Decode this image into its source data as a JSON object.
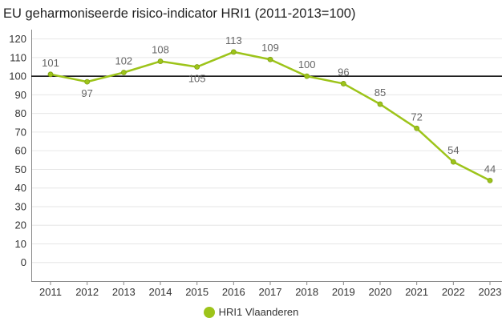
{
  "chart_data": {
    "type": "line",
    "title": "EU geharmoniseerde risico-indicator HRI1 (2011-2013=100)",
    "xlabel": "",
    "ylabel": "",
    "categories": [
      "2011",
      "2012",
      "2013",
      "2014",
      "2015",
      "2016",
      "2017",
      "2018",
      "2019",
      "2020",
      "2021",
      "2022",
      "2023"
    ],
    "series": [
      {
        "name": "HRI1 Vlaanderen",
        "values": [
          101,
          97,
          102,
          108,
          105,
          113,
          109,
          100,
          96,
          85,
          72,
          54,
          44
        ]
      }
    ],
    "reference_line": 100,
    "ylim": [
      -10,
      125
    ],
    "yticks": [
      0,
      10,
      20,
      30,
      40,
      50,
      60,
      70,
      80,
      90,
      100,
      110,
      120
    ],
    "grid": true,
    "legend_position": "bottom-center"
  },
  "colors": {
    "series": "#9dc41a",
    "reference": "#000000",
    "grid": "#e6e6e6",
    "axis": "#888888"
  }
}
